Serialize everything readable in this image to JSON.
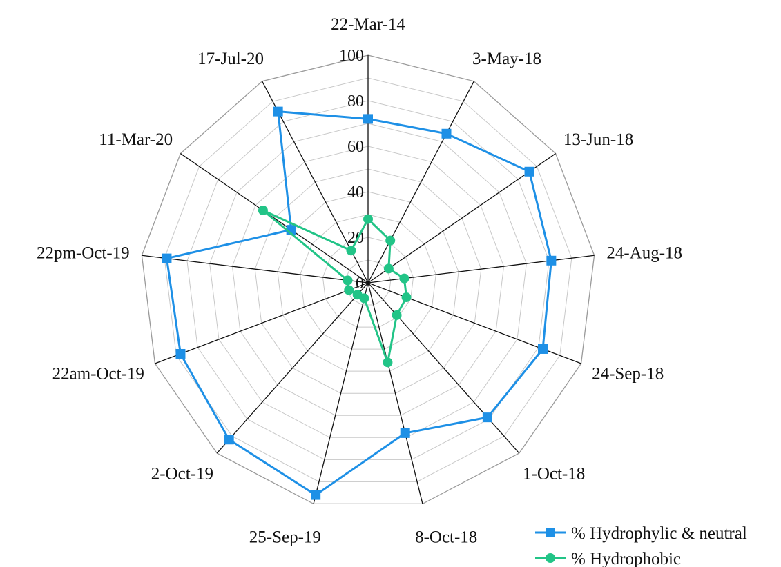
{
  "chart_data": {
    "type": "radar",
    "categories": [
      "22-Mar-14",
      "3-May-18",
      "13-Jun-18",
      "24-Aug-18",
      "24-Sep-18",
      "1-Oct-18",
      "8-Oct-18",
      "25-Sep-19",
      "2-Oct-19",
      "22am-Oct-19",
      "22pm-Oct-19",
      "11-Mar-20",
      "17-Jul-20"
    ],
    "radial_axis": {
      "min": 0,
      "max": 100,
      "ticks": [
        0,
        20,
        40,
        60,
        80,
        100
      ]
    },
    "series": [
      {
        "name": "% Hydrophylic & neutral",
        "color": "#1e90e6",
        "marker": "square",
        "values": [
          72,
          74,
          86,
          81,
          82,
          79,
          68,
          96,
          92,
          88,
          89,
          41,
          85
        ]
      },
      {
        "name": "% Hydrophobic",
        "color": "#22c487",
        "marker": "circle",
        "values": [
          28,
          21,
          11,
          16,
          18,
          19,
          36,
          7,
          7,
          9,
          9,
          56,
          16
        ]
      }
    ],
    "grid": true,
    "legend_position": "bottom-right"
  }
}
